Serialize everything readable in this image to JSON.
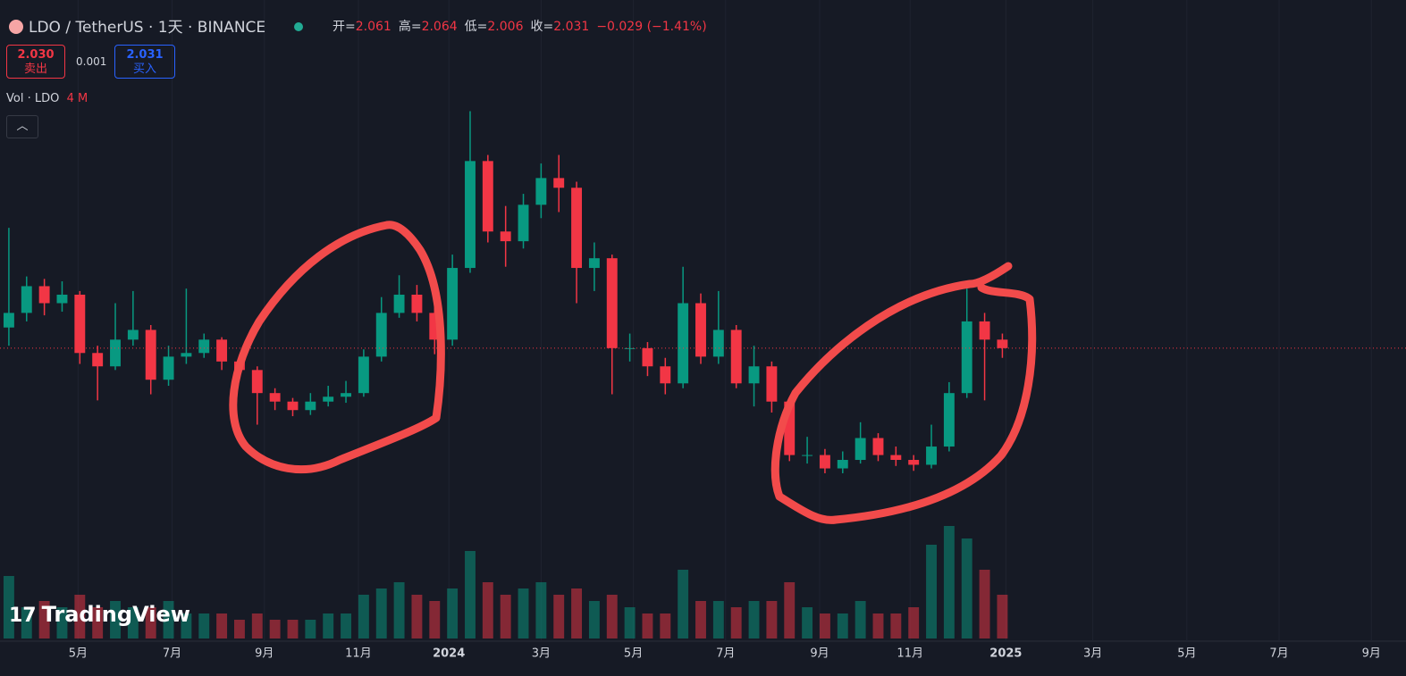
{
  "header": {
    "symbol": "LDO / TetherUS · 1天 · BINANCE",
    "ohlc": [
      {
        "label": "开=",
        "value": "2.061"
      },
      {
        "label": "高=",
        "value": "2.064"
      },
      {
        "label": "低=",
        "value": "2.006"
      },
      {
        "label": "收=",
        "value": "2.031"
      }
    ],
    "change": "−0.029 (−1.41%)",
    "sell": {
      "price": "2.030",
      "label": "卖出"
    },
    "spread": "0.001",
    "buy": {
      "price": "2.031",
      "label": "买入"
    },
    "volume_legend": "Vol · LDO",
    "volume_value": "4 M",
    "watermark": "TradingView"
  },
  "chart_data": {
    "type": "candlestick",
    "open": [
      2.2,
      2.32,
      2.54,
      2.4,
      2.47,
      1.99,
      1.88,
      2.1,
      2.18,
      1.77,
      1.96,
      1.99,
      2.1,
      1.92,
      1.85,
      1.66,
      1.59,
      1.52,
      1.59,
      1.63,
      1.66,
      1.96,
      2.32,
      2.47,
      2.32,
      2.1,
      2.69,
      3.57,
      2.99,
      2.91,
      3.21,
      3.43,
      3.35,
      2.69,
      2.77,
      2.03,
      2.03,
      1.88,
      1.74,
      2.4,
      1.96,
      2.18,
      1.74,
      1.88,
      1.59,
      1.15,
      1.15,
      1.04,
      1.11,
      1.29,
      1.15,
      1.11,
      1.07,
      1.22,
      1.66,
      2.25,
      2.1
    ],
    "high": [
      3.02,
      2.62,
      2.6,
      2.58,
      2.5,
      2.05,
      2.4,
      2.5,
      2.22,
      2.05,
      2.52,
      2.15,
      2.12,
      1.97,
      1.88,
      1.7,
      1.62,
      1.66,
      1.72,
      1.76,
      2.02,
      2.45,
      2.63,
      2.55,
      2.4,
      2.8,
      3.98,
      3.62,
      3.2,
      3.3,
      3.55,
      3.62,
      3.4,
      2.9,
      2.8,
      2.15,
      2.08,
      1.95,
      2.7,
      2.48,
      2.5,
      2.22,
      2.05,
      1.92,
      1.62,
      1.3,
      1.2,
      1.18,
      1.42,
      1.33,
      1.22,
      1.15,
      1.4,
      1.75,
      2.52,
      2.32,
      2.15
    ],
    "low": [
      2.05,
      2.25,
      2.3,
      2.33,
      1.9,
      1.6,
      1.85,
      2.05,
      1.65,
      1.72,
      1.9,
      1.95,
      1.85,
      1.78,
      1.4,
      1.52,
      1.47,
      1.48,
      1.55,
      1.58,
      1.63,
      1.92,
      2.28,
      2.25,
      1.98,
      2.05,
      2.65,
      2.9,
      2.7,
      2.85,
      3.1,
      3.15,
      2.4,
      2.5,
      1.65,
      1.92,
      1.8,
      1.65,
      1.7,
      1.9,
      1.9,
      1.7,
      1.55,
      1.5,
      1.1,
      1.08,
      1.0,
      1.0,
      1.08,
      1.1,
      1.06,
      1.02,
      1.04,
      1.18,
      1.62,
      1.6,
      1.95
    ],
    "close": [
      2.32,
      2.54,
      2.4,
      2.47,
      1.99,
      1.88,
      2.1,
      2.18,
      1.77,
      1.96,
      1.99,
      2.1,
      1.92,
      1.85,
      1.66,
      1.59,
      1.52,
      1.59,
      1.63,
      1.66,
      1.96,
      2.32,
      2.47,
      2.32,
      2.1,
      2.69,
      3.57,
      2.99,
      2.91,
      3.21,
      3.43,
      3.35,
      2.69,
      2.77,
      2.03,
      2.03,
      1.88,
      1.74,
      2.4,
      1.96,
      2.18,
      1.74,
      1.88,
      1.59,
      1.15,
      1.15,
      1.04,
      1.11,
      1.29,
      1.15,
      1.11,
      1.07,
      1.22,
      1.66,
      2.25,
      2.1,
      2.03
    ],
    "volume": [
      20,
      10,
      12,
      10,
      14,
      10,
      12,
      10,
      10,
      12,
      8,
      8,
      8,
      6,
      8,
      6,
      6,
      6,
      8,
      8,
      14,
      16,
      18,
      14,
      12,
      16,
      28,
      18,
      14,
      16,
      18,
      14,
      16,
      12,
      14,
      10,
      8,
      8,
      22,
      12,
      12,
      10,
      12,
      12,
      18,
      10,
      8,
      8,
      12,
      8,
      8,
      10,
      30,
      36,
      32,
      22,
      14
    ],
    "up_color": "#089981",
    "down_color": "#f23645",
    "xlim": [
      -0.5,
      78.5
    ],
    "ylim": [
      0.5,
      4.8
    ],
    "volume_lim": [
      0,
      40
    ],
    "xticks": [
      {
        "value": 3.9,
        "label": "5月"
      },
      {
        "value": 9.2,
        "label": "7月"
      },
      {
        "value": 14.4,
        "label": "9月"
      },
      {
        "value": 19.7,
        "label": "11月"
      },
      {
        "value": 24.8,
        "label": "2024"
      },
      {
        "value": 30.0,
        "label": "3月"
      },
      {
        "value": 35.2,
        "label": "5月"
      },
      {
        "value": 40.4,
        "label": "7月"
      },
      {
        "value": 45.7,
        "label": "9月"
      },
      {
        "value": 50.8,
        "label": "11月"
      },
      {
        "value": 56.2,
        "label": "2025"
      },
      {
        "value": 61.1,
        "label": "3月"
      },
      {
        "value": 66.4,
        "label": "5月"
      },
      {
        "value": 71.6,
        "label": "7月"
      },
      {
        "value": 76.8,
        "label": "9月"
      }
    ],
    "grid": true
  }
}
